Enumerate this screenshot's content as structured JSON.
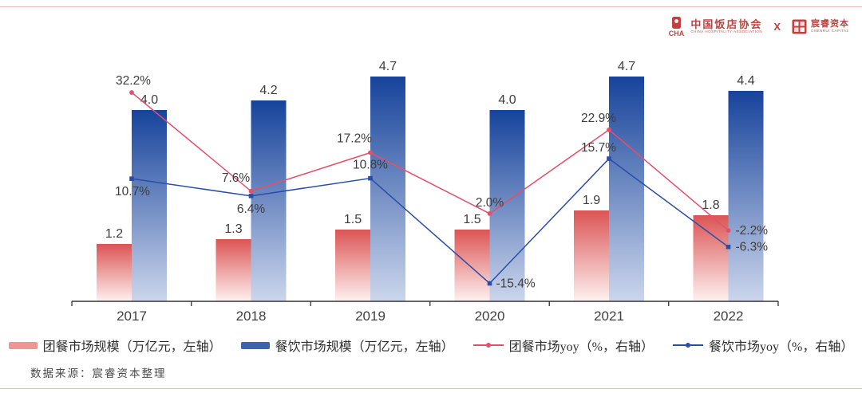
{
  "page": {
    "background": "#ffffff",
    "border_color": "#e7bdb5"
  },
  "header": {
    "brand_color": "#bf4340",
    "org1": {
      "name": "中国饭店协会",
      "subtitle": "CHINA HOSPITALITY ASSOCIATION"
    },
    "separator": "X",
    "org2": {
      "name": "宸睿资本",
      "subtitle": "CHENRUI CAPITAL"
    }
  },
  "chart_data": {
    "type": "bar+line",
    "categories": [
      "2017",
      "2018",
      "2019",
      "2020",
      "2021",
      "2022"
    ],
    "bar_series": [
      {
        "name": "团餐市场规模（万亿元，左轴）",
        "values": [
          1.2,
          1.3,
          1.5,
          1.5,
          1.9,
          1.8
        ],
        "value_labels": [
          "1.2",
          "1.3",
          "1.5",
          "1.5",
          "1.9",
          "1.8"
        ],
        "color_top": "#dc5454",
        "color_bottom": "#fdf1f0",
        "legend_color": "#ef9593"
      },
      {
        "name": "餐饮市场规模（万亿元，左轴）",
        "values": [
          4.0,
          4.2,
          4.7,
          4.0,
          4.7,
          4.4
        ],
        "value_labels": [
          "4.0",
          "4.2",
          "4.7",
          "4.0",
          "4.7",
          "4.4"
        ],
        "color_top": "#16439b",
        "color_bottom": "#ccd6ec",
        "legend_color": "#3e63af"
      }
    ],
    "line_series": [
      {
        "name": "团餐市场yoy（%，右轴）",
        "values": [
          32.2,
          7.6,
          17.2,
          2.0,
          22.9,
          -2.2
        ],
        "point_labels": [
          "32.2%",
          "7.6%",
          "17.2%",
          "2.0%",
          "22.9%",
          "-2.2%"
        ],
        "color": "#e4506a",
        "marker": "circle"
      },
      {
        "name": "餐饮市场yoy（%，右轴）",
        "values": [
          10.7,
          6.4,
          10.8,
          -15.4,
          15.7,
          -6.3
        ],
        "point_labels": [
          "10.7%",
          "6.4%",
          "10.8%",
          "-15.4%",
          "15.7%",
          "-6.3%"
        ],
        "color": "#2a4da8",
        "marker": "square"
      }
    ],
    "left_axis_unit": "万亿元",
    "right_axis_unit": "%",
    "grid": false,
    "legend_position": "bottom",
    "axis_color": "#333333"
  },
  "legend": {
    "items": [
      {
        "type": "bar",
        "label": "团餐市场规模（万亿元，左轴）"
      },
      {
        "type": "bar",
        "label": "餐饮市场规模（万亿元，左轴）"
      },
      {
        "type": "line",
        "label": "团餐市场yoy（%，右轴）"
      },
      {
        "type": "line",
        "label": "餐饮市场yoy（%，右轴）"
      }
    ]
  },
  "footer": {
    "source": "数据来源：宸睿资本整理"
  }
}
